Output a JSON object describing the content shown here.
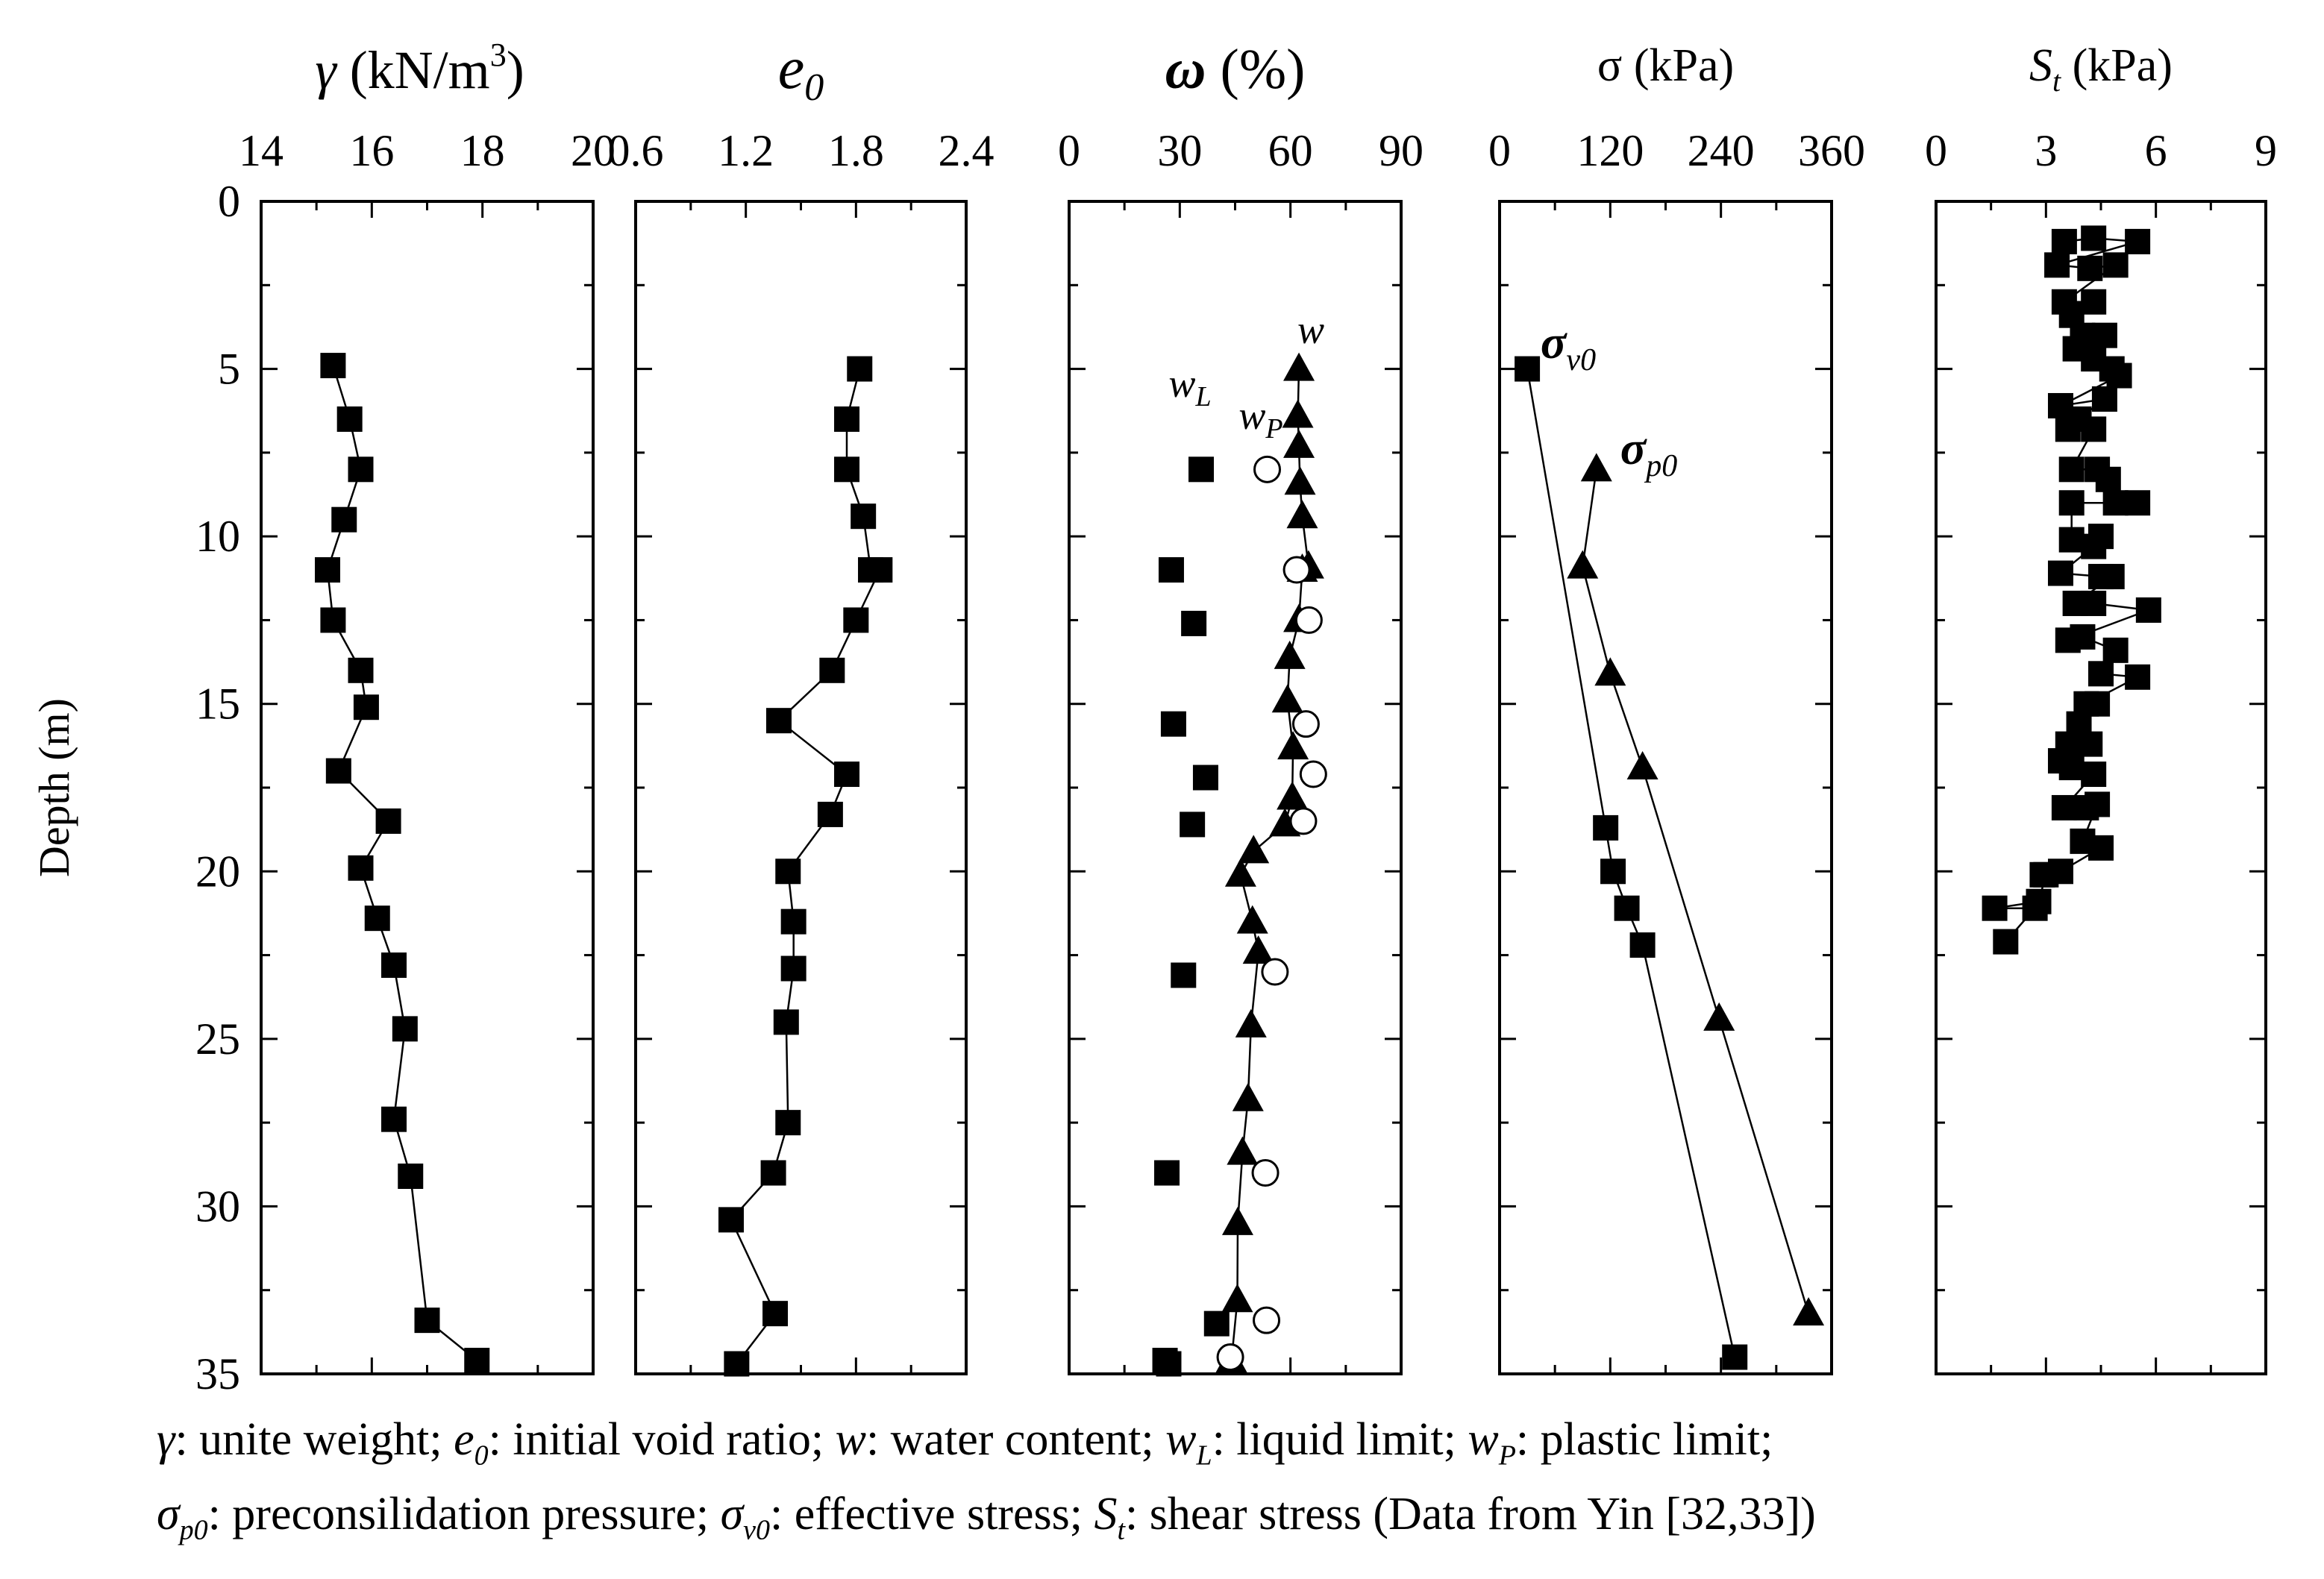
{
  "chart_data": [
    {
      "type": "scatter",
      "panel": "unit-weight",
      "title_symbol": "γ",
      "title_unit": "(kN/m",
      "title_exp": "3",
      "title_close": ")",
      "xlim": [
        14,
        20
      ],
      "xticks": [
        "14",
        "16",
        "18",
        "20"
      ],
      "ylabel": "Depth (m)",
      "ylim": [
        0,
        35
      ],
      "yticks": [
        "0",
        "5",
        "10",
        "15",
        "20",
        "25",
        "30",
        "35"
      ],
      "series": [
        {
          "name": "γ",
          "marker": "square",
          "connected": true,
          "points": [
            [
              15.3,
              4.9
            ],
            [
              15.6,
              6.5
            ],
            [
              15.8,
              8.0
            ],
            [
              15.5,
              9.5
            ],
            [
              15.2,
              11.0
            ],
            [
              15.3,
              12.5
            ],
            [
              15.8,
              14.0
            ],
            [
              15.9,
              15.1
            ],
            [
              15.4,
              17.0
            ],
            [
              16.3,
              18.5
            ],
            [
              15.8,
              19.9
            ],
            [
              16.1,
              21.4
            ],
            [
              16.4,
              22.8
            ],
            [
              16.6,
              24.7
            ],
            [
              16.4,
              27.4
            ],
            [
              16.7,
              29.1
            ],
            [
              17.0,
              33.4
            ],
            [
              17.9,
              34.6
            ]
          ]
        }
      ]
    },
    {
      "type": "scatter",
      "panel": "void-ratio",
      "title_symbol": "e",
      "title_sub": "0",
      "xlim": [
        0.6,
        2.4
      ],
      "xticks": [
        "0.6",
        "1.2",
        "1.8",
        "2.4"
      ],
      "series": [
        {
          "name": "e0",
          "marker": "square",
          "connected": true,
          "points": [
            [
              1.82,
              5.0
            ],
            [
              1.75,
              6.5
            ],
            [
              1.75,
              8.0
            ],
            [
              1.84,
              9.4
            ],
            [
              1.88,
              11.0
            ],
            [
              1.93,
              11.0
            ],
            [
              1.8,
              12.5
            ],
            [
              1.67,
              14.0
            ],
            [
              1.38,
              15.5
            ],
            [
              1.75,
              17.1
            ],
            [
              1.66,
              18.3
            ],
            [
              1.43,
              20.0
            ],
            [
              1.46,
              21.5
            ],
            [
              1.46,
              22.9
            ],
            [
              1.42,
              24.5
            ],
            [
              1.43,
              27.5
            ],
            [
              1.35,
              29.0
            ],
            [
              1.12,
              30.4
            ],
            [
              1.36,
              33.2
            ],
            [
              1.15,
              34.7
            ]
          ]
        }
      ]
    },
    {
      "type": "scatter",
      "panel": "water-content",
      "title_symbol": "ω",
      "title_unit": "(%)",
      "xlim": [
        0,
        90
      ],
      "xticks": [
        "0",
        "30",
        "60",
        "90"
      ],
      "labels": {
        "w": "w",
        "wL": "w",
        "wL_sub": "L",
        "wP": "w",
        "wP_sub": "P"
      },
      "series": [
        {
          "name": "w",
          "marker": "triangle",
          "connected": true,
          "points": [
            [
              62.3,
              5.0
            ],
            [
              62.0,
              6.4
            ],
            [
              62.3,
              7.3
            ],
            [
              62.6,
              8.4
            ],
            [
              63.2,
              9.4
            ],
            [
              64.9,
              10.9
            ],
            [
              63.2,
              11.0
            ],
            [
              62.3,
              12.5
            ],
            [
              59.8,
              13.6
            ],
            [
              59.2,
              14.9
            ],
            [
              60.7,
              16.3
            ],
            [
              60.5,
              17.8
            ],
            [
              58.5,
              18.6
            ],
            [
              50.0,
              19.4
            ],
            [
              46.5,
              20.1
            ],
            [
              49.7,
              21.5
            ],
            [
              51.3,
              22.4
            ],
            [
              49.3,
              24.6
            ],
            [
              48.5,
              26.8
            ],
            [
              47.0,
              28.4
            ],
            [
              45.7,
              30.5
            ],
            [
              45.6,
              32.8
            ],
            [
              44.0,
              34.6
            ]
          ]
        },
        {
          "name": "wL",
          "marker": "square",
          "connected": false,
          "points": [
            [
              35.8,
              8.0
            ],
            [
              27.7,
              11.0
            ],
            [
              33.8,
              12.6
            ],
            [
              28.3,
              15.6
            ],
            [
              37.0,
              17.2
            ],
            [
              33.4,
              18.6
            ],
            [
              31.0,
              23.1
            ],
            [
              26.5,
              29.0
            ],
            [
              40.0,
              33.5
            ],
            [
              26.0,
              34.6
            ],
            [
              27.0,
              34.7
            ]
          ]
        },
        {
          "name": "wP",
          "marker": "circle",
          "connected": false,
          "points": [
            [
              53.7,
              8.0
            ],
            [
              61.7,
              11.0
            ],
            [
              65.0,
              12.5
            ],
            [
              64.2,
              15.6
            ],
            [
              66.2,
              17.1
            ],
            [
              63.5,
              18.5
            ],
            [
              55.8,
              23.0
            ],
            [
              53.2,
              29.0
            ],
            [
              53.5,
              33.4
            ],
            [
              43.7,
              34.5
            ]
          ]
        }
      ]
    },
    {
      "type": "line",
      "panel": "stress",
      "title": "σ (kPa)",
      "xlim": [
        0,
        360
      ],
      "xticks": [
        "0",
        "120",
        "240",
        "360"
      ],
      "labels": {
        "sv0": "σ",
        "sv0_sub": "v0",
        "sp0": "σ",
        "sp0_sub": "p0"
      },
      "series": [
        {
          "name": "σv0",
          "marker": "square",
          "connected": true,
          "points": [
            [
              30,
              5.0
            ],
            [
              115,
              18.7
            ],
            [
              123,
              20.0
            ],
            [
              138,
              21.1
            ],
            [
              155,
              22.2
            ],
            [
              255,
              34.5
            ]
          ]
        },
        {
          "name": "σp0",
          "marker": "triangle",
          "connected": true,
          "points": [
            [
              105,
              8.0
            ],
            [
              90,
              10.9
            ],
            [
              120,
              14.1
            ],
            [
              155,
              16.9
            ],
            [
              238,
              24.4
            ],
            [
              335,
              33.2
            ]
          ]
        }
      ]
    },
    {
      "type": "scatter",
      "panel": "shear-strength",
      "title_symbol": "S",
      "title_sub": "t",
      "title_unit": "(kPa)",
      "xlim": [
        0,
        9
      ],
      "xticks": [
        "0",
        "3",
        "6",
        "9"
      ],
      "series": [
        {
          "name": "St",
          "marker": "square",
          "connected": true,
          "points": [
            [
              3.5,
              1.2
            ],
            [
              4.3,
              1.1
            ],
            [
              5.5,
              1.2
            ],
            [
              3.3,
              1.9
            ],
            [
              4.2,
              2.0
            ],
            [
              4.9,
              1.9
            ],
            [
              3.5,
              3.0
            ],
            [
              4.3,
              3.0
            ],
            [
              3.7,
              3.4
            ],
            [
              4.0,
              4.0
            ],
            [
              4.6,
              4.0
            ],
            [
              3.8,
              4.4
            ],
            [
              4.3,
              4.7
            ],
            [
              4.8,
              5.0
            ],
            [
              5.0,
              5.2
            ],
            [
              3.4,
              6.1
            ],
            [
              4.6,
              5.9
            ],
            [
              3.9,
              6.5
            ],
            [
              3.6,
              6.8
            ],
            [
              4.3,
              6.8
            ],
            [
              3.7,
              8.0
            ],
            [
              4.4,
              8.0
            ],
            [
              4.7,
              8.3
            ],
            [
              4.9,
              9.0
            ],
            [
              5.5,
              9.0
            ],
            [
              3.7,
              9.0
            ],
            [
              3.7,
              10.1
            ],
            [
              4.5,
              10.0
            ],
            [
              4.3,
              10.3
            ],
            [
              3.4,
              11.1
            ],
            [
              4.5,
              11.2
            ],
            [
              4.8,
              11.2
            ],
            [
              3.8,
              12.0
            ],
            [
              4.3,
              12.0
            ],
            [
              5.8,
              12.2
            ],
            [
              3.6,
              13.1
            ],
            [
              4.0,
              13.0
            ],
            [
              4.9,
              13.4
            ],
            [
              4.5,
              14.1
            ],
            [
              5.5,
              14.2
            ],
            [
              4.1,
              15.0
            ],
            [
              4.4,
              15.0
            ],
            [
              3.9,
              15.6
            ],
            [
              3.6,
              16.2
            ],
            [
              4.2,
              16.2
            ],
            [
              3.4,
              16.7
            ],
            [
              3.7,
              16.9
            ],
            [
              4.3,
              17.1
            ],
            [
              3.5,
              18.1
            ],
            [
              4.1,
              18.1
            ],
            [
              4.4,
              18.0
            ],
            [
              4.0,
              19.1
            ],
            [
              4.5,
              19.3
            ],
            [
              3.4,
              20.0
            ],
            [
              2.9,
              20.1
            ],
            [
              3.0,
              20.1
            ],
            [
              2.8,
              20.9
            ],
            [
              1.6,
              21.1
            ],
            [
              2.7,
              21.1
            ],
            [
              1.9,
              22.1
            ]
          ]
        }
      ]
    }
  ],
  "caption": {
    "line1": {
      "sym_gamma": "γ",
      "t_gamma": ": unite weight;",
      "sym_e": "e",
      "sub_e": "0",
      "t_e": ": initial void ratio;",
      "sym_w": "w",
      "t_w": ": water content;",
      "sym_wL": "w",
      "sub_wL": "L",
      "t_wL": ": liquid limit;",
      "sym_wP": "w",
      "sub_wP": "P",
      "t_wP": ": plastic limit;"
    },
    "line2": {
      "sym_sp0": "σ",
      "sub_sp0": "p0",
      "t_sp0": ": preconsilidation pressure;",
      "sym_sv0": "σ",
      "sub_sv0": "v0",
      "t_sv0": ": effective stress;",
      "sym_St": "S",
      "sub_St": "t",
      "t_St": ": shear stress (Data from Yin [32,33])"
    }
  }
}
